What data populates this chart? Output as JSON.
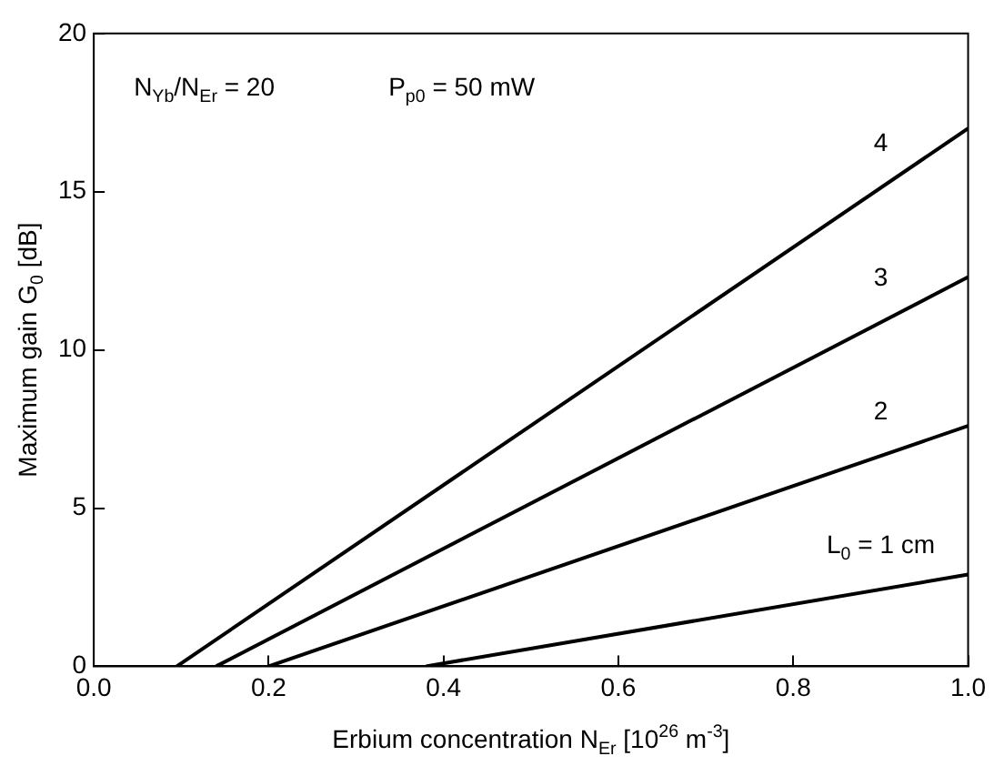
{
  "chart_data": {
    "type": "line",
    "xlabel": "Erbium concentration N$_{Er}$ [10$^{26}$ m$^{-3}$]",
    "ylabel": "Maximum gain G$_{0}$ [dB]",
    "series": [
      {
        "name": "4",
        "color": "#000000",
        "x": [
          0.095,
          1.0
        ],
        "values": [
          0,
          17.0
        ]
      },
      {
        "name": "3",
        "color": "#000000",
        "x": [
          0.14,
          1.0
        ],
        "values": [
          0,
          12.3
        ]
      },
      {
        "name": "2",
        "color": "#000000",
        "x": [
          0.2,
          1.0
        ],
        "values": [
          0,
          7.6
        ]
      },
      {
        "name": "L$_{0}$ = 1 cm",
        "color": "#000000",
        "x": [
          0.38,
          1.0
        ],
        "values": [
          0,
          2.9
        ]
      }
    ],
    "xlim": [
      0,
      1
    ],
    "ylim": [
      0,
      20
    ],
    "xticks": [
      {
        "value": 0,
        "label": "0.0"
      },
      {
        "value": 0.2,
        "label": "0.2"
      },
      {
        "value": 0.4,
        "label": "0.4"
      },
      {
        "value": 0.6,
        "label": "0.6"
      },
      {
        "value": 0.8,
        "label": "0.8"
      },
      {
        "value": 1,
        "label": "1.0"
      }
    ],
    "yticks": [
      0,
      5,
      10,
      15,
      20
    ],
    "grid": false,
    "legend": false,
    "marker": "none",
    "line_style": "solid",
    "annotations": [
      "N$_{Yb}$/N$_{Er}$ = 20",
      "P$_{p0}$ = 50 mW"
    ]
  }
}
